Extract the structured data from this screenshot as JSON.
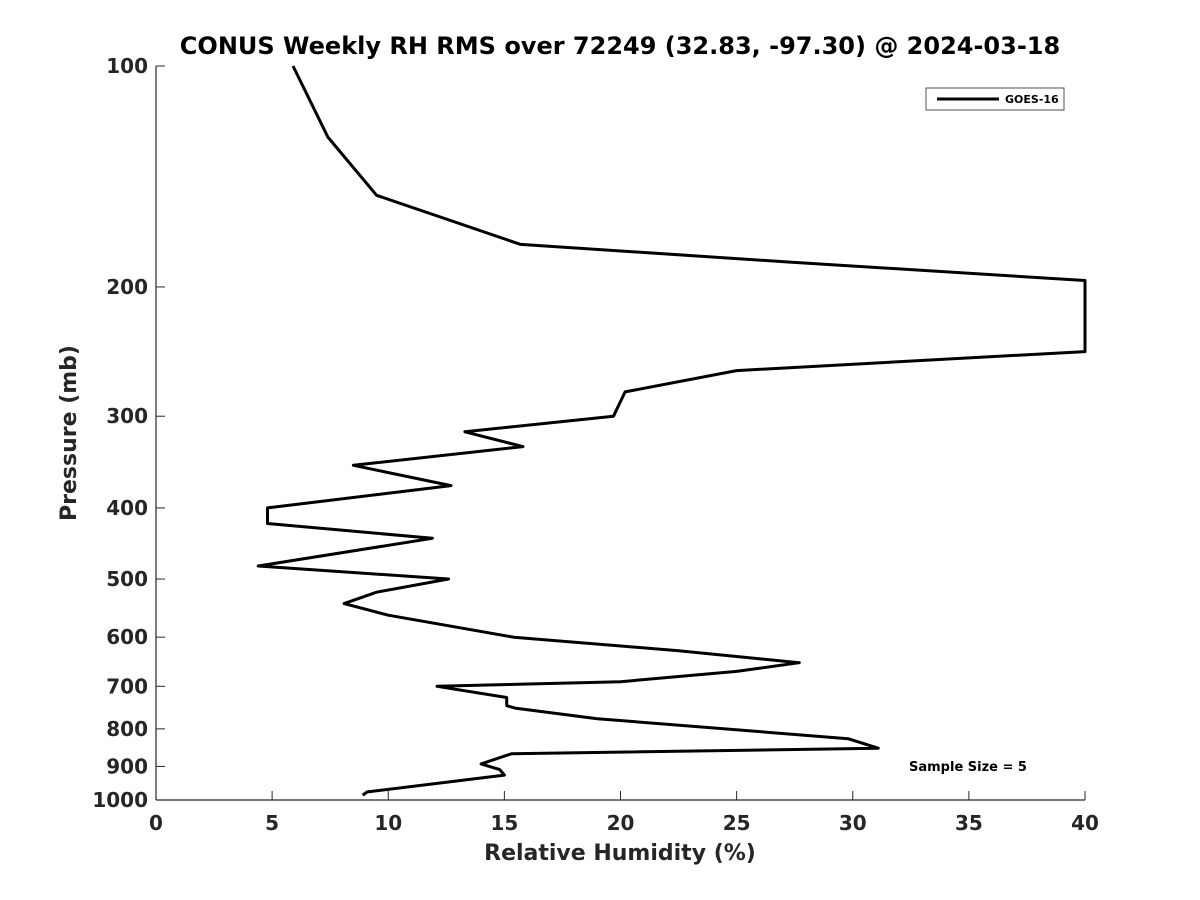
{
  "chart_data": {
    "type": "line",
    "title": "CONUS Weekly RH RMS over 72249 (32.83, -97.30) @ 2024-03-18",
    "xlabel": "Relative Humidity (%)",
    "ylabel": "Pressure (mb)",
    "xlim": [
      0,
      40
    ],
    "ylim": [
      100,
      1000
    ],
    "y_scale": "log",
    "y_reversed": true,
    "grid": false,
    "legend_position": "top-right",
    "x_ticks": [
      "0",
      "5",
      "10",
      "15",
      "20",
      "25",
      "30",
      "35",
      "40"
    ],
    "y_ticks": [
      "100",
      "200",
      "300",
      "400",
      "500",
      "600",
      "700",
      "800",
      "900",
      "1000"
    ],
    "annotation": "Sample Size = 5",
    "series": [
      {
        "name": "GOES-16",
        "color": "#000000",
        "points": [
          [
            5.9,
            100
          ],
          [
            7.4,
            125
          ],
          [
            9.5,
            150
          ],
          [
            15.7,
            175
          ],
          [
            27.3,
            185
          ],
          [
            40.0,
            196
          ],
          [
            40.0,
            245
          ],
          [
            25.0,
            260
          ],
          [
            20.2,
            278
          ],
          [
            19.7,
            300
          ],
          [
            13.3,
            315
          ],
          [
            15.8,
            330
          ],
          [
            8.5,
            350
          ],
          [
            12.7,
            373
          ],
          [
            4.8,
            400
          ],
          [
            4.8,
            420
          ],
          [
            11.9,
            440
          ],
          [
            4.4,
            480
          ],
          [
            12.6,
            500
          ],
          [
            9.5,
            521
          ],
          [
            8.1,
            540
          ],
          [
            10.0,
            560
          ],
          [
            15.4,
            600
          ],
          [
            22.5,
            626
          ],
          [
            27.7,
            650
          ],
          [
            25.0,
            668
          ],
          [
            20.0,
            690
          ],
          [
            12.1,
            700
          ],
          [
            15.1,
            725
          ],
          [
            15.1,
            744
          ],
          [
            15.5,
            750
          ],
          [
            19.0,
            775
          ],
          [
            29.8,
            825
          ],
          [
            31.1,
            850
          ],
          [
            15.3,
            865
          ],
          [
            14.0,
            893
          ],
          [
            14.8,
            909
          ],
          [
            15.0,
            925
          ],
          [
            9.1,
            975
          ],
          [
            8.9,
            985
          ]
        ]
      }
    ]
  }
}
